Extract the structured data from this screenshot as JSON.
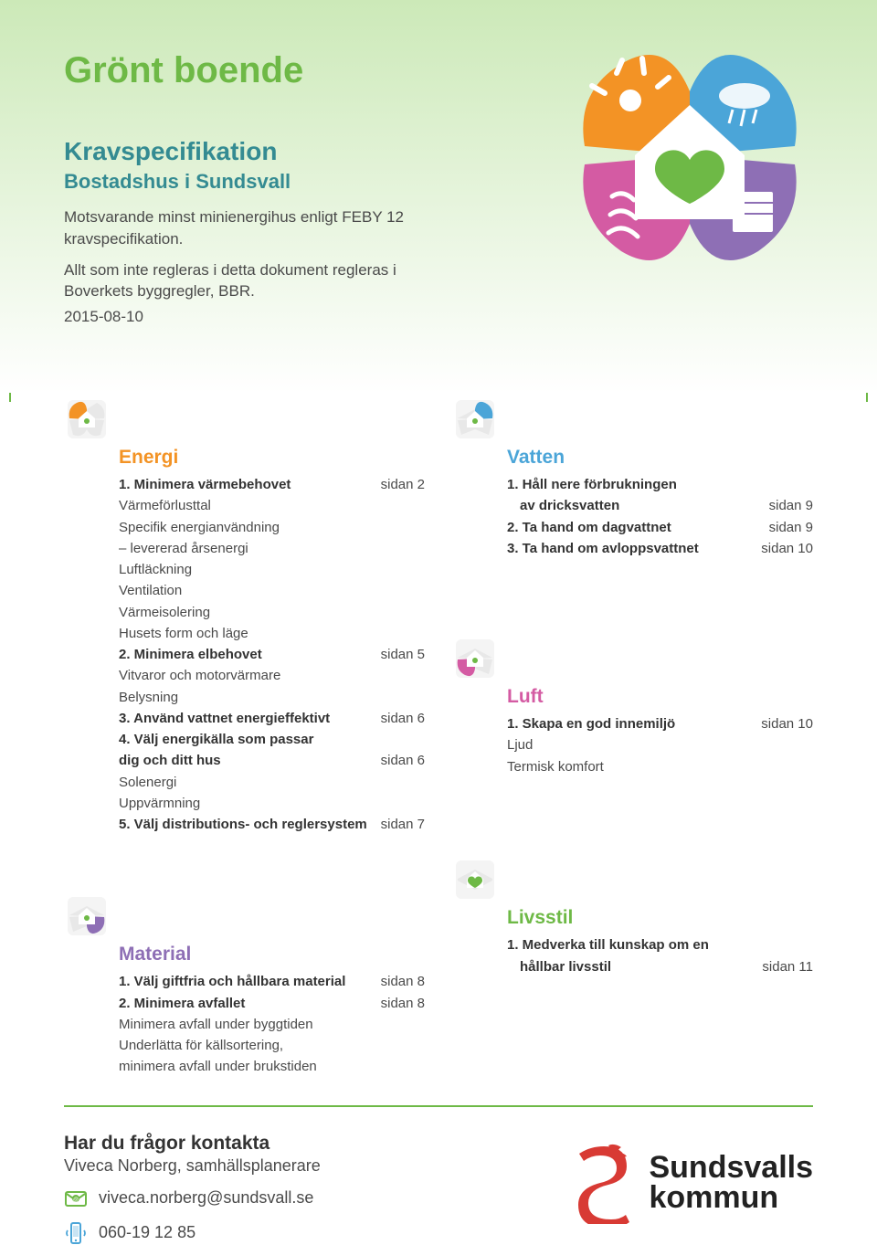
{
  "colors": {
    "green": "#6eb946",
    "teal": "#348b92",
    "orange": "#f39325",
    "blue": "#4ba5d8",
    "pink": "#d45ba3",
    "purple": "#8e6fb5",
    "text": "#4a4a4a",
    "red": "#d83a34"
  },
  "header": {
    "title": "Grönt boende",
    "subtitle1": "Kravspecifikation",
    "subtitle2": "Bostadshus i Sundsvall",
    "intro1": "Motsvarande minst minienergihus enligt FEBY 12 kravspecifikation.",
    "intro2": "Allt som inte regleras i detta dokument regleras i Boverkets byggregler, BBR.",
    "date": "2015-08-10"
  },
  "sections": {
    "energi": {
      "title": "Energi",
      "title_color": "#f39325",
      "items": [
        {
          "bold": true,
          "label": "1. Minimera värmebehovet",
          "page": "sidan 2"
        },
        {
          "bold": false,
          "label": "Värmeförlusttal",
          "page": ""
        },
        {
          "bold": false,
          "label": "Specifik energianvändning",
          "page": ""
        },
        {
          "bold": false,
          "label": "– levererad årsenergi",
          "page": ""
        },
        {
          "bold": false,
          "label": "Luftläckning",
          "page": ""
        },
        {
          "bold": false,
          "label": "Ventilation",
          "page": ""
        },
        {
          "bold": false,
          "label": "Värmeisolering",
          "page": ""
        },
        {
          "bold": false,
          "label": "Husets form och läge",
          "page": ""
        },
        {
          "bold": true,
          "label": "2. Minimera elbehovet",
          "page": "sidan 5"
        },
        {
          "bold": false,
          "label": "Vitvaror och motorvärmare",
          "page": ""
        },
        {
          "bold": false,
          "label": "Belysning",
          "page": ""
        },
        {
          "bold": true,
          "label": "3. Använd vattnet energieffektivt",
          "page": "sidan 6"
        },
        {
          "bold": true,
          "label": "4. Välj energikälla som passar",
          "page": ""
        },
        {
          "bold": true,
          "label": "dig och ditt hus",
          "page": "sidan 6"
        },
        {
          "bold": false,
          "label": "Solenergi",
          "page": ""
        },
        {
          "bold": false,
          "label": "Uppvärmning",
          "page": ""
        },
        {
          "bold": true,
          "label": "5. Välj distributions- och reglersystem",
          "page": "sidan 7"
        }
      ]
    },
    "vatten": {
      "title": "Vatten",
      "title_color": "#4ba5d8",
      "items": [
        {
          "bold": true,
          "label": "1. Håll nere förbrukningen",
          "page": ""
        },
        {
          "bold": true,
          "label": "    av dricksvatten",
          "page": "sidan 9",
          "indent": true
        },
        {
          "bold": true,
          "label": "2. Ta hand om dagvattnet",
          "page": "sidan 9"
        },
        {
          "bold": true,
          "label": "3. Ta hand om avloppsvattnet",
          "page": "sidan 10"
        }
      ]
    },
    "luft": {
      "title": "Luft",
      "title_color": "#d45ba3",
      "items": [
        {
          "bold": true,
          "label": "1. Skapa en god innemiljö",
          "page": "sidan 10"
        },
        {
          "bold": false,
          "label": "Ljud",
          "page": ""
        },
        {
          "bold": false,
          "label": "Termisk komfort",
          "page": ""
        }
      ]
    },
    "material": {
      "title": "Material",
      "title_color": "#8e6fb5",
      "items": [
        {
          "bold": true,
          "label": "1. Välj giftfria och hållbara material",
          "page": "sidan 8"
        },
        {
          "bold": true,
          "label": "2. Minimera avfallet",
          "page": "sidan 8"
        },
        {
          "bold": false,
          "label": "Minimera avfall under byggtiden",
          "page": ""
        },
        {
          "bold": false,
          "label": "Underlätta för källsortering,",
          "page": ""
        },
        {
          "bold": false,
          "label": "minimera avfall under brukstiden",
          "page": ""
        }
      ]
    },
    "livsstil": {
      "title": "Livsstil",
      "title_color": "#6eb946",
      "items": [
        {
          "bold": true,
          "label": "1. Medverka till kunskap om en",
          "page": ""
        },
        {
          "bold": true,
          "label": "    hållbar livsstil",
          "page": "sidan 11",
          "indent": true
        }
      ]
    }
  },
  "footer": {
    "contact_heading": "Har du frågor kontakta",
    "contact_person": "Viveca Norberg, samhällsplanerare",
    "email": "viveca.norberg@sundsvall.se",
    "phone": "060-19 12 85",
    "org1": "Sundsvalls",
    "org2": "kommun"
  }
}
